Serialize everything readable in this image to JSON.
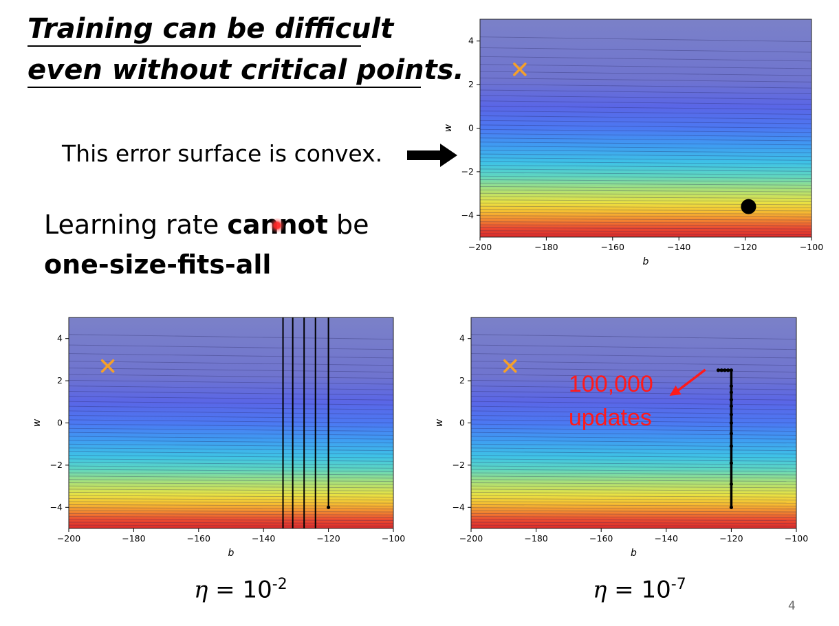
{
  "slide": {
    "title_line1": "Training can be difficult",
    "title_line2": "even without critical points.",
    "convex_note": "This error surface is convex.",
    "learning_rate_prefix": "Learning rate ",
    "learning_rate_bold": "cannot",
    "learning_rate_suffix": " be",
    "learning_rate_line2": "one-size-fits-all",
    "page_number": "4"
  },
  "captions": {
    "left": {
      "symbol": "η",
      "text": " = 10",
      "exponent": "-2"
    },
    "right": {
      "symbol": "η",
      "text": " = 10",
      "exponent": "-7"
    }
  },
  "colors": {
    "arrow": "#000000",
    "target_marker": "#f5a02a",
    "annotation": "#ff1a1a",
    "path": "#000000",
    "laser_pointer": "#ff2828"
  },
  "chart_data": [
    {
      "type": "contour",
      "name": "error-surface-overview",
      "xlabel": "b",
      "ylabel": "w",
      "xlim": [
        -200,
        -100
      ],
      "ylim": [
        -5,
        5
      ],
      "xticks": [
        -200,
        -180,
        -160,
        -140,
        -120,
        -100
      ],
      "yticks": [
        4,
        2,
        0,
        -2,
        -4
      ],
      "target_marker": {
        "b": -188,
        "w": 2.7,
        "symbol": "x"
      },
      "start_point": {
        "b": -119,
        "w": -3.6
      }
    },
    {
      "type": "contour",
      "name": "training-eta-1e-2",
      "xlabel": "b",
      "ylabel": "w",
      "xlim": [
        -200,
        -100
      ],
      "ylim": [
        -5,
        5
      ],
      "xticks": [
        -200,
        -180,
        -160,
        -140,
        -120,
        -100
      ],
      "yticks": [
        4,
        2,
        0,
        -2,
        -4
      ],
      "target_marker": {
        "b": -188,
        "w": 2.7,
        "symbol": "x"
      },
      "start_point": {
        "b": -120,
        "w": -4
      },
      "oscillation_b": [
        -134,
        -131,
        -127.5,
        -124,
        -120
      ]
    },
    {
      "type": "contour",
      "name": "training-eta-1e-7",
      "xlabel": "b",
      "ylabel": "w",
      "xlim": [
        -200,
        -100
      ],
      "ylim": [
        -5,
        5
      ],
      "xticks": [
        -200,
        -180,
        -160,
        -140,
        -120,
        -100
      ],
      "yticks": [
        4,
        2,
        0,
        -2,
        -4
      ],
      "target_marker": {
        "b": -188,
        "w": 2.7,
        "symbol": "x"
      },
      "path": {
        "b": [
          -120,
          -120,
          -120,
          -120,
          -120,
          -120,
          -120,
          -120,
          -120,
          -120,
          -120,
          -120,
          -121,
          -122,
          -123,
          -124
        ],
        "w": [
          -4,
          -2.9,
          -1.9,
          -1.1,
          -0.5,
          0,
          0.4,
          0.8,
          1.1,
          1.45,
          1.75,
          2.5,
          2.5,
          2.5,
          2.5,
          2.5
        ]
      },
      "annotation": {
        "line1": "100,000",
        "line2": "updates"
      }
    }
  ]
}
